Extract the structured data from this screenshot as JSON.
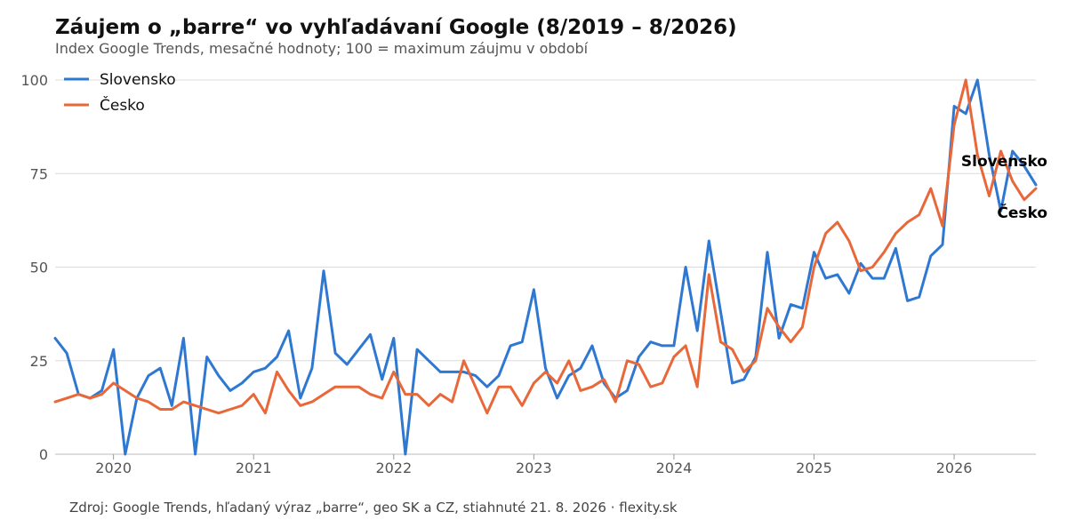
{
  "chart_data": {
    "type": "line",
    "title": "Záujem o „barre“ vo vyhľadávaní Google (8/2019 – 8/2026)",
    "subtitle": "Index Google Trends, mesačné hodnoty; 100 = maximum záujmu v období",
    "source": "Zdroj: Google Trends, hľadaný výraz „barre“, geo SK a CZ, stiahnuté 21. 8. 2026 · flexity.sk",
    "start_month": "2019-08",
    "x_tick_labels": [
      "2020",
      "2021",
      "2022",
      "2023",
      "2024",
      "2025",
      "2026"
    ],
    "y_ticks": [
      0,
      25,
      50,
      75,
      100
    ],
    "ylim": [
      0,
      100
    ],
    "grid": "horizontal",
    "legend_position": "top-left",
    "series": [
      {
        "name": "Slovensko",
        "color": "#2f78d2",
        "end_label": "Slovensko",
        "values": [
          31,
          27,
          16,
          15,
          17,
          28,
          0,
          15,
          21,
          23,
          13,
          31,
          0,
          26,
          21,
          17,
          19,
          22,
          23,
          26,
          33,
          15,
          23,
          49,
          27,
          24,
          28,
          32,
          20,
          31,
          0,
          28,
          25,
          22,
          22,
          22,
          21,
          18,
          21,
          29,
          30,
          44,
          23,
          15,
          21,
          23,
          29,
          19,
          15,
          17,
          26,
          30,
          29,
          29,
          50,
          33,
          57,
          38,
          19,
          20,
          26,
          54,
          31,
          40,
          39,
          54,
          47,
          48,
          43,
          51,
          47,
          47,
          55,
          41,
          42,
          53,
          56,
          93,
          91,
          100,
          80,
          65,
          81,
          77,
          72
        ]
      },
      {
        "name": "Česko",
        "color": "#e8683a",
        "end_label": "Česko",
        "values": [
          14,
          15,
          16,
          15,
          16,
          19,
          17,
          15,
          14,
          12,
          12,
          14,
          13,
          12,
          11,
          12,
          13,
          16,
          11,
          22,
          17,
          13,
          14,
          16,
          18,
          18,
          18,
          16,
          15,
          22,
          16,
          16,
          13,
          16,
          14,
          25,
          18,
          11,
          18,
          18,
          13,
          19,
          22,
          19,
          25,
          17,
          18,
          20,
          14,
          25,
          24,
          18,
          19,
          26,
          29,
          18,
          48,
          30,
          28,
          22,
          25,
          39,
          34,
          30,
          34,
          50,
          59,
          62,
          57,
          49,
          50,
          54,
          59,
          62,
          64,
          71,
          61,
          88,
          100,
          80,
          69,
          81,
          73,
          68,
          71
        ]
      }
    ]
  }
}
